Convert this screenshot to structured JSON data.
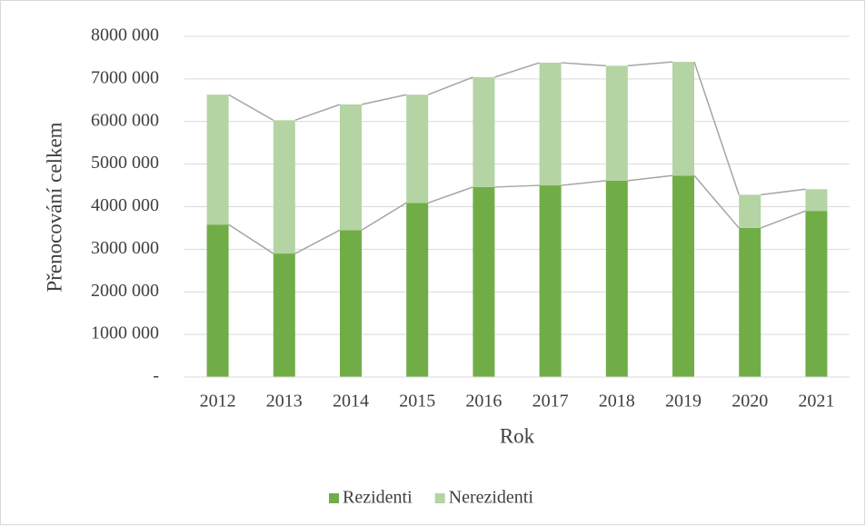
{
  "chart_data": {
    "type": "stacked_bar",
    "x_label": "Rok",
    "y_label": "Přenocování celkem",
    "categories": [
      "2012",
      "2013",
      "2014",
      "2015",
      "2016",
      "2017",
      "2018",
      "2019",
      "2020",
      "2021"
    ],
    "series": [
      {
        "name": "Rezidenti",
        "color": "#70ad47",
        "values": [
          3580000,
          2900000,
          3450000,
          4090000,
          4460000,
          4500000,
          4610000,
          4730000,
          3500000,
          3900000
        ]
      },
      {
        "name": "Nerezidenti",
        "color": "#b4d4a3",
        "values": [
          3050000,
          3130000,
          2950000,
          2540000,
          2580000,
          2880000,
          2700000,
          2670000,
          780000,
          510000
        ]
      }
    ],
    "ylim": [
      0,
      8000000
    ],
    "yticks": [
      {
        "value": 0,
        "label": "-"
      },
      {
        "value": 1000000,
        "label": "1000 000"
      },
      {
        "value": 2000000,
        "label": "2000 000"
      },
      {
        "value": 3000000,
        "label": "3000 000"
      },
      {
        "value": 4000000,
        "label": "4000 000"
      },
      {
        "value": 5000000,
        "label": "5000 000"
      },
      {
        "value": 6000000,
        "label": "6000 000"
      },
      {
        "value": 7000000,
        "label": "7000 000"
      },
      {
        "value": 8000000,
        "label": "8000 000"
      }
    ],
    "grid": true,
    "series_lines": true,
    "legend": "bottom"
  }
}
